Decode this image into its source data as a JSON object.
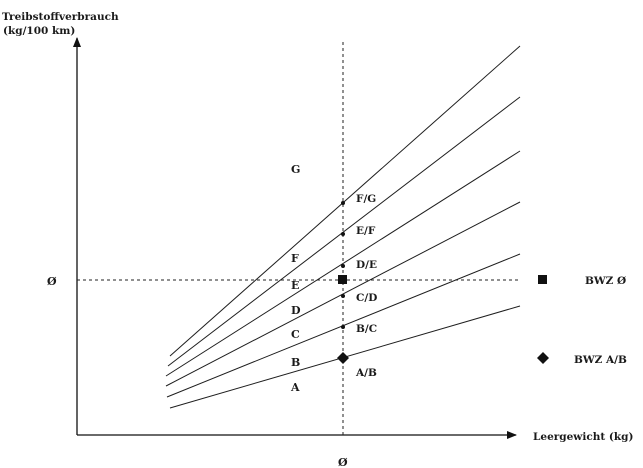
{
  "y_axis": {
    "title_line1": "Treibstoffverbrauch",
    "title_line2": "(kg/100 km)",
    "tick": "Ø"
  },
  "x_axis": {
    "title": "Leergewicht (kg)",
    "tick": "Ø"
  },
  "regions": [
    "A",
    "B",
    "C",
    "D",
    "E",
    "F",
    "G"
  ],
  "boundaries": [
    "A/B",
    "B/C",
    "C/D",
    "D/E",
    "E/F",
    "F/G"
  ],
  "legend": {
    "square_label": "BWZ Ø",
    "diamond_label": "BWZ A/B"
  }
}
